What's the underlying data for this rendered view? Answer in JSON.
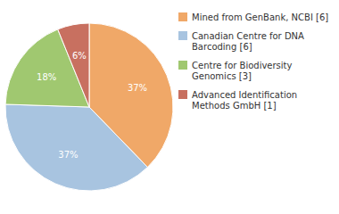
{
  "chart_data": {
    "type": "pie",
    "categories": [
      "Mined from GenBank, NCBI [6]",
      "Canadian Centre for DNA\nBarcoding [6]",
      "Centre for Biodiversity\nGenomics [3]",
      "Advanced Identification\nMethods GmbH [1]"
    ],
    "values": [
      37,
      37,
      18,
      6
    ],
    "value_labels": [
      "37%",
      "37%",
      "18%",
      "6%"
    ],
    "colors": [
      "#f0a868",
      "#a8c4e0",
      "#a0c870",
      "#c87060"
    ],
    "data_labels": true,
    "legend": "right"
  }
}
